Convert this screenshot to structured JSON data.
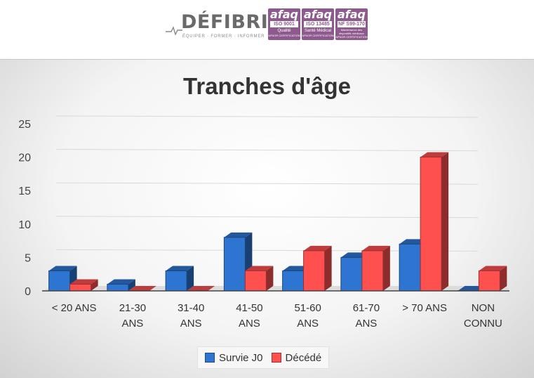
{
  "header": {
    "brand_name": "DÉFIBRIL",
    "brand_tagline": "ÉQUIPER · FORMER · INFORMER",
    "certifications": [
      {
        "name": "afaq",
        "code": "ISO 9001",
        "sub": "Qualité",
        "foot": "AFNOR CERTIFICATION"
      },
      {
        "name": "afaq",
        "code": "ISO 13485",
        "sub": "Santé Médical",
        "foot": "AFNOR CERTIFICATION"
      },
      {
        "name": "afaq",
        "code": "NF S99-170",
        "sub": "Maintenance des dispositifs médicaux",
        "foot": "AFNOR CERTIFICATION"
      }
    ]
  },
  "chart_data": {
    "type": "bar",
    "title": "Tranches d'âge",
    "categories": [
      "< 20 ANS",
      "21-30 ANS",
      "31-40 ANS",
      "41-50 ANS",
      "51-60 ANS",
      "61-70 ANS",
      "> 70 ANS",
      "NON CONNU"
    ],
    "category_lines": [
      [
        "< 20 ANS"
      ],
      [
        "21-30",
        "ANS"
      ],
      [
        "31-40",
        "ANS"
      ],
      [
        "41-50",
        "ANS"
      ],
      [
        "51-60",
        "ANS"
      ],
      [
        "61-70",
        "ANS"
      ],
      [
        "> 70 ANS"
      ],
      [
        "NON",
        "CONNU"
      ]
    ],
    "series": [
      {
        "name": "Survie J0",
        "color": "#2e75d1",
        "values": [
          3,
          1,
          3,
          8,
          3,
          5,
          7,
          0
        ]
      },
      {
        "name": "Décédé",
        "color": "#ff5050",
        "values": [
          1,
          0,
          0,
          3,
          6,
          6,
          20,
          3
        ]
      }
    ],
    "ylim": [
      0,
      25
    ],
    "yticks": [
      0,
      5,
      10,
      15,
      20,
      25
    ],
    "grid": true,
    "legend": "bottom",
    "style": "3d-bar"
  }
}
